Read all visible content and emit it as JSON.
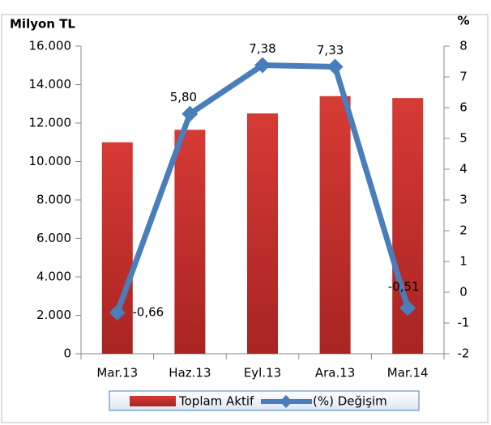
{
  "chart_data": {
    "type": "bar_line",
    "y_label": "Milyon TL",
    "y2_label": "%",
    "categories": [
      "Mar.13",
      "Haz.13",
      "Eyl.13",
      "Ara.13",
      "Mar.14"
    ],
    "series": [
      {
        "name": "Toplam Aktif",
        "type": "bar",
        "color": "#c8322e",
        "values": [
          11000,
          11650,
          12500,
          13400,
          13300
        ]
      },
      {
        "name": "(%) Değişim",
        "type": "line",
        "axis": "y2",
        "color": "#4a7ebb",
        "values": [
          -0.66,
          5.8,
          7.38,
          7.33,
          -0.51
        ],
        "value_labels": [
          "-0,66",
          "5,80",
          "7,38",
          "7,33",
          "-0,51"
        ]
      }
    ],
    "ylim": [
      0,
      16000
    ],
    "yticks": [
      0,
      {
        "value": 2000,
        "label": "2.000"
      },
      {
        "value": 4000,
        "label": "4.000"
      },
      {
        "value": 6000,
        "label": "6.000"
      },
      {
        "value": 8000,
        "label": "8.000"
      },
      {
        "value": 10000,
        "label": "10.000"
      },
      {
        "value": 12000,
        "label": "12.000"
      },
      {
        "value": 14000,
        "label": "14.000"
      },
      {
        "value": 16000,
        "label": "16.000"
      }
    ],
    "y2lim": [
      -2,
      8
    ],
    "y2ticks": [
      -2,
      -1,
      0,
      1,
      2,
      3,
      4,
      5,
      6,
      7,
      8
    ],
    "legend": "bottom"
  }
}
